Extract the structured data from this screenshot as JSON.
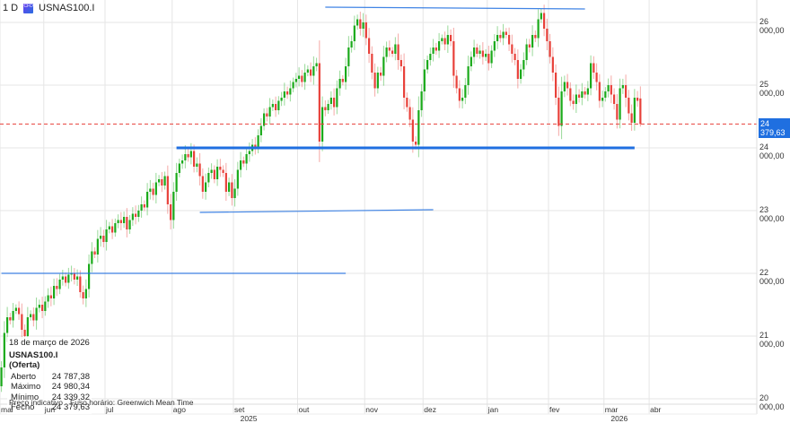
{
  "header": {
    "timeframe": "1 D",
    "instrument_icon": "cfd-icon",
    "symbol": "USNAS100.I"
  },
  "legend": {
    "date": "18 de março de 2026",
    "title": "USNAS100.I (Oferta)",
    "rows": [
      {
        "label": "Aberto",
        "value": "24 787,38"
      },
      {
        "label": "Máximo",
        "value": "24 980,34"
      },
      {
        "label": "Mínimo",
        "value": "24 339,32"
      },
      {
        "label": "Fecho",
        "value": "24 379,63"
      }
    ]
  },
  "status": {
    "price_type": "Preço indicativo",
    "timezone": "Fuso horário: Greenwich Mean Time"
  },
  "current_price_label": "24 379,63",
  "colors": {
    "up": "#1aaa1a",
    "down": "#e8413a",
    "trendline": "#1f6fe0",
    "current_price": "#e8413a",
    "grid": "#e6e6e6"
  },
  "chart_data": {
    "type": "candlestick",
    "ylim": [
      20000,
      26300
    ],
    "y_ticks": [
      {
        "value": 20000,
        "label": "20 000,00"
      },
      {
        "value": 21000,
        "label": "21 000,00"
      },
      {
        "value": 22000,
        "label": "22 000,00"
      },
      {
        "value": 23000,
        "label": "23 000,00"
      },
      {
        "value": 24000,
        "label": "24 000,00"
      },
      {
        "value": 25000,
        "label": "25 000,00"
      },
      {
        "value": 26000,
        "label": "26 000,00"
      }
    ],
    "current_price": 24379.63,
    "years": [
      {
        "label": "2025",
        "month": "set"
      },
      {
        "label": "2026",
        "month": "mar"
      }
    ],
    "months": [
      {
        "label": "mai",
        "closes": [
          20500,
          21050,
          21300,
          21250,
          21400,
          21450,
          21350,
          21100,
          21000,
          21300,
          21350,
          21250,
          21450,
          21500,
          21400
        ]
      },
      {
        "label": "jun",
        "closes": [
          21550,
          21650,
          21600,
          21800,
          21750,
          21900,
          21950,
          21850,
          21980,
          22000,
          21900,
          21950,
          21700,
          21600,
          21750,
          22150,
          22350,
          22300,
          22550,
          22600,
          22500
        ]
      },
      {
        "label": "jul",
        "closes": [
          22700,
          22750,
          22650,
          22800,
          22850,
          22800,
          22900,
          22700,
          22850,
          22950,
          22900,
          23000,
          23100,
          23050,
          23300,
          23350,
          23250,
          23450,
          23500,
          23400,
          23550,
          23100,
          22850
        ]
      },
      {
        "label": "ago",
        "closes": [
          23300,
          23600,
          23750,
          23800,
          23900,
          23850,
          23950,
          23700,
          23750,
          23550,
          23300,
          23450,
          23600,
          23650,
          23500,
          23700,
          23650,
          23600,
          23300,
          23450,
          23200
        ]
      },
      {
        "label": "set",
        "closes": [
          23350,
          23650,
          23800,
          23750,
          23900,
          23950,
          24050,
          24000,
          24200,
          24350,
          24550,
          24500,
          24650,
          24700,
          24600,
          24750,
          24800,
          24900,
          24850,
          24950,
          25050,
          25100
        ]
      },
      {
        "label": "out",
        "closes": [
          25150,
          25050,
          25200,
          25250,
          25150,
          25300,
          25350,
          24100,
          24650,
          24600,
          24700,
          24800,
          24650,
          24950,
          25100,
          25050,
          25300,
          25600,
          25700,
          25950,
          26050,
          25900,
          26000
        ]
      },
      {
        "label": "nov",
        "closes": [
          25750,
          25500,
          25200,
          24950,
          25200,
          25150,
          25450,
          25600,
          25550,
          25500,
          25650,
          25400,
          25300,
          24800,
          24650,
          24450,
          24100,
          24050,
          24600,
          24900
        ]
      },
      {
        "label": "dez",
        "closes": [
          25250,
          25400,
          25500,
          25600,
          25550,
          25700,
          25750,
          25650,
          25800,
          25700,
          25150,
          24950,
          24750,
          24800,
          25000,
          25300,
          25450,
          25600,
          25500,
          25550,
          25450,
          25500
        ]
      },
      {
        "label": "jan",
        "closes": [
          25350,
          25550,
          25700,
          25800,
          25750,
          25850,
          25800,
          25650,
          25500,
          25400,
          25100,
          25250,
          25400,
          25650,
          25600,
          25800,
          25750,
          26050,
          26150,
          25900,
          25700
        ]
      },
      {
        "label": "fev",
        "closes": [
          25450,
          25200,
          24800,
          24350,
          24900,
          25050,
          24950,
          24750,
          24700,
          24850,
          24800,
          24900,
          24850,
          24950,
          25350,
          25200,
          25050,
          24750,
          24800
        ]
      },
      {
        "label": "mar",
        "closes": [
          24900,
          25000,
          24850,
          24700,
          24450,
          24950,
          25000,
          24800,
          24550,
          24400,
          24800,
          24750,
          24379.63
        ]
      }
    ],
    "last_candle": {
      "open": 24787.38,
      "high": 24980.34,
      "low": 24339.32,
      "close": 24379.63
    },
    "extra_x_ticks": [
      "abr"
    ],
    "trendlines": [
      {
        "from": {
          "month": "out",
          "bar": 9,
          "price": 26243
        },
        "to": {
          "month": "fev",
          "bar": 12,
          "price": 26214
        },
        "weight": "thin"
      },
      {
        "from": {
          "month": "ago",
          "bar": 1,
          "price": 24000
        },
        "to": {
          "month": "mar",
          "bar": 10,
          "price": 24000
        },
        "weight": "thick"
      },
      {
        "from": {
          "month": "ago",
          "bar": 9,
          "price": 22971
        },
        "to": {
          "month": "dez",
          "bar": 3,
          "price": 23014
        },
        "weight": "thin"
      },
      {
        "from": {
          "month": "mai",
          "bar": 0,
          "price": 22000
        },
        "to": {
          "month": "out",
          "bar": 16,
          "price": 22000
        },
        "weight": "thin"
      }
    ]
  }
}
